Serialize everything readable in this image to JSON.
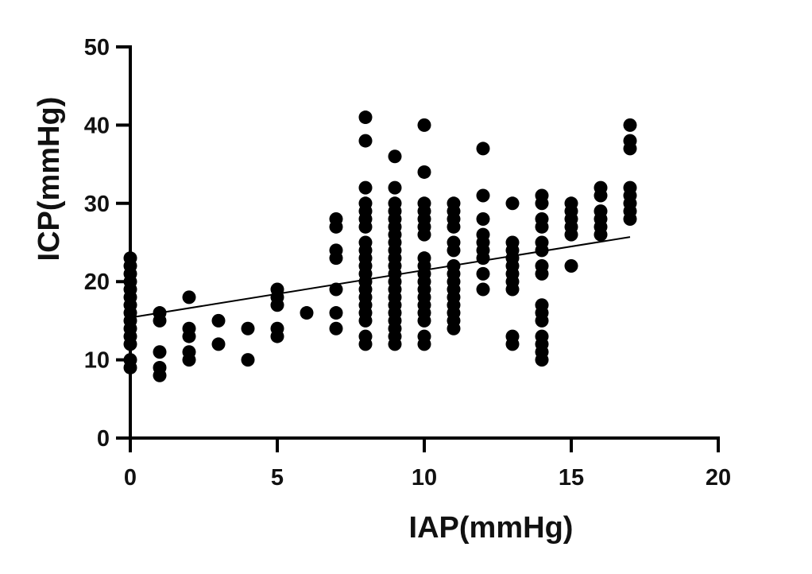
{
  "chart_data": {
    "type": "scatter",
    "title": "",
    "xlabel": "IAP(mmHg)",
    "ylabel": "ICP(mmHg)",
    "xlim": [
      0,
      20
    ],
    "ylim": [
      0,
      50
    ],
    "x_ticks": [
      "0",
      "5",
      "10",
      "15",
      "20"
    ],
    "y_ticks": [
      "0",
      "10",
      "20",
      "30",
      "40",
      "50"
    ],
    "grid": false,
    "legend": "none",
    "point_color": "#000000",
    "series": [
      {
        "points": [
          [
            0,
            9
          ],
          [
            0,
            10
          ],
          [
            0,
            12
          ],
          [
            0,
            13
          ],
          [
            0,
            14
          ],
          [
            0,
            15
          ],
          [
            0,
            16
          ],
          [
            0,
            17
          ],
          [
            0,
            18
          ],
          [
            0,
            19
          ],
          [
            0,
            20
          ],
          [
            0,
            21
          ],
          [
            0,
            22
          ],
          [
            0,
            23
          ],
          [
            1,
            8
          ],
          [
            1,
            9
          ],
          [
            1,
            11
          ],
          [
            1,
            15
          ],
          [
            1,
            16
          ],
          [
            2,
            10
          ],
          [
            2,
            11
          ],
          [
            2,
            13
          ],
          [
            2,
            14
          ],
          [
            2,
            18
          ],
          [
            3,
            12
          ],
          [
            3,
            15
          ],
          [
            4,
            10
          ],
          [
            4,
            14
          ],
          [
            5,
            13
          ],
          [
            5,
            14
          ],
          [
            5,
            17
          ],
          [
            5,
            18
          ],
          [
            5,
            19
          ],
          [
            6,
            16
          ],
          [
            7,
            14
          ],
          [
            7,
            16
          ],
          [
            7,
            19
          ],
          [
            7,
            23
          ],
          [
            7,
            24
          ],
          [
            7,
            27
          ],
          [
            7,
            28
          ],
          [
            8,
            12
          ],
          [
            8,
            13
          ],
          [
            8,
            15
          ],
          [
            8,
            16
          ],
          [
            8,
            17
          ],
          [
            8,
            18
          ],
          [
            8,
            19
          ],
          [
            8,
            20
          ],
          [
            8,
            21
          ],
          [
            8,
            22
          ],
          [
            8,
            23
          ],
          [
            8,
            24
          ],
          [
            8,
            25
          ],
          [
            8,
            27
          ],
          [
            8,
            28
          ],
          [
            8,
            29
          ],
          [
            8,
            30
          ],
          [
            8,
            32
          ],
          [
            8,
            38
          ],
          [
            8,
            41
          ],
          [
            9,
            12
          ],
          [
            9,
            13
          ],
          [
            9,
            14
          ],
          [
            9,
            15
          ],
          [
            9,
            16
          ],
          [
            9,
            17
          ],
          [
            9,
            18
          ],
          [
            9,
            19
          ],
          [
            9,
            20
          ],
          [
            9,
            21
          ],
          [
            9,
            22
          ],
          [
            9,
            23
          ],
          [
            9,
            24
          ],
          [
            9,
            25
          ],
          [
            9,
            26
          ],
          [
            9,
            27
          ],
          [
            9,
            28
          ],
          [
            9,
            29
          ],
          [
            9,
            30
          ],
          [
            9,
            32
          ],
          [
            9,
            36
          ],
          [
            10,
            12
          ],
          [
            10,
            13
          ],
          [
            10,
            15
          ],
          [
            10,
            16
          ],
          [
            10,
            17
          ],
          [
            10,
            18
          ],
          [
            10,
            19
          ],
          [
            10,
            20
          ],
          [
            10,
            21
          ],
          [
            10,
            22
          ],
          [
            10,
            23
          ],
          [
            10,
            26
          ],
          [
            10,
            27
          ],
          [
            10,
            28
          ],
          [
            10,
            29
          ],
          [
            10,
            30
          ],
          [
            10,
            34
          ],
          [
            10,
            40
          ],
          [
            11,
            14
          ],
          [
            11,
            15
          ],
          [
            11,
            16
          ],
          [
            11,
            17
          ],
          [
            11,
            18
          ],
          [
            11,
            19
          ],
          [
            11,
            20
          ],
          [
            11,
            21
          ],
          [
            11,
            22
          ],
          [
            11,
            24
          ],
          [
            11,
            25
          ],
          [
            11,
            27
          ],
          [
            11,
            28
          ],
          [
            11,
            29
          ],
          [
            11,
            30
          ],
          [
            12,
            19
          ],
          [
            12,
            21
          ],
          [
            12,
            23
          ],
          [
            12,
            24
          ],
          [
            12,
            25
          ],
          [
            12,
            26
          ],
          [
            12,
            28
          ],
          [
            12,
            31
          ],
          [
            12,
            37
          ],
          [
            13,
            12
          ],
          [
            13,
            13
          ],
          [
            13,
            19
          ],
          [
            13,
            20
          ],
          [
            13,
            21
          ],
          [
            13,
            22
          ],
          [
            13,
            23
          ],
          [
            13,
            24
          ],
          [
            13,
            25
          ],
          [
            13,
            30
          ],
          [
            14,
            10
          ],
          [
            14,
            11
          ],
          [
            14,
            12
          ],
          [
            14,
            13
          ],
          [
            14,
            15
          ],
          [
            14,
            16
          ],
          [
            14,
            17
          ],
          [
            14,
            21
          ],
          [
            14,
            22
          ],
          [
            14,
            24
          ],
          [
            14,
            25
          ],
          [
            14,
            27
          ],
          [
            14,
            28
          ],
          [
            14,
            30
          ],
          [
            14,
            31
          ],
          [
            15,
            22
          ],
          [
            15,
            26
          ],
          [
            15,
            27
          ],
          [
            15,
            28
          ],
          [
            15,
            29
          ],
          [
            15,
            30
          ],
          [
            16,
            26
          ],
          [
            16,
            27
          ],
          [
            16,
            28
          ],
          [
            16,
            29
          ],
          [
            16,
            31
          ],
          [
            16,
            32
          ],
          [
            17,
            28
          ],
          [
            17,
            29
          ],
          [
            17,
            30
          ],
          [
            17,
            31
          ],
          [
            17,
            32
          ],
          [
            17,
            37
          ],
          [
            17,
            38
          ],
          [
            17,
            40
          ]
        ]
      }
    ],
    "fit_line": {
      "x": [
        0,
        17
      ],
      "y": [
        15.4,
        25.7
      ]
    }
  }
}
